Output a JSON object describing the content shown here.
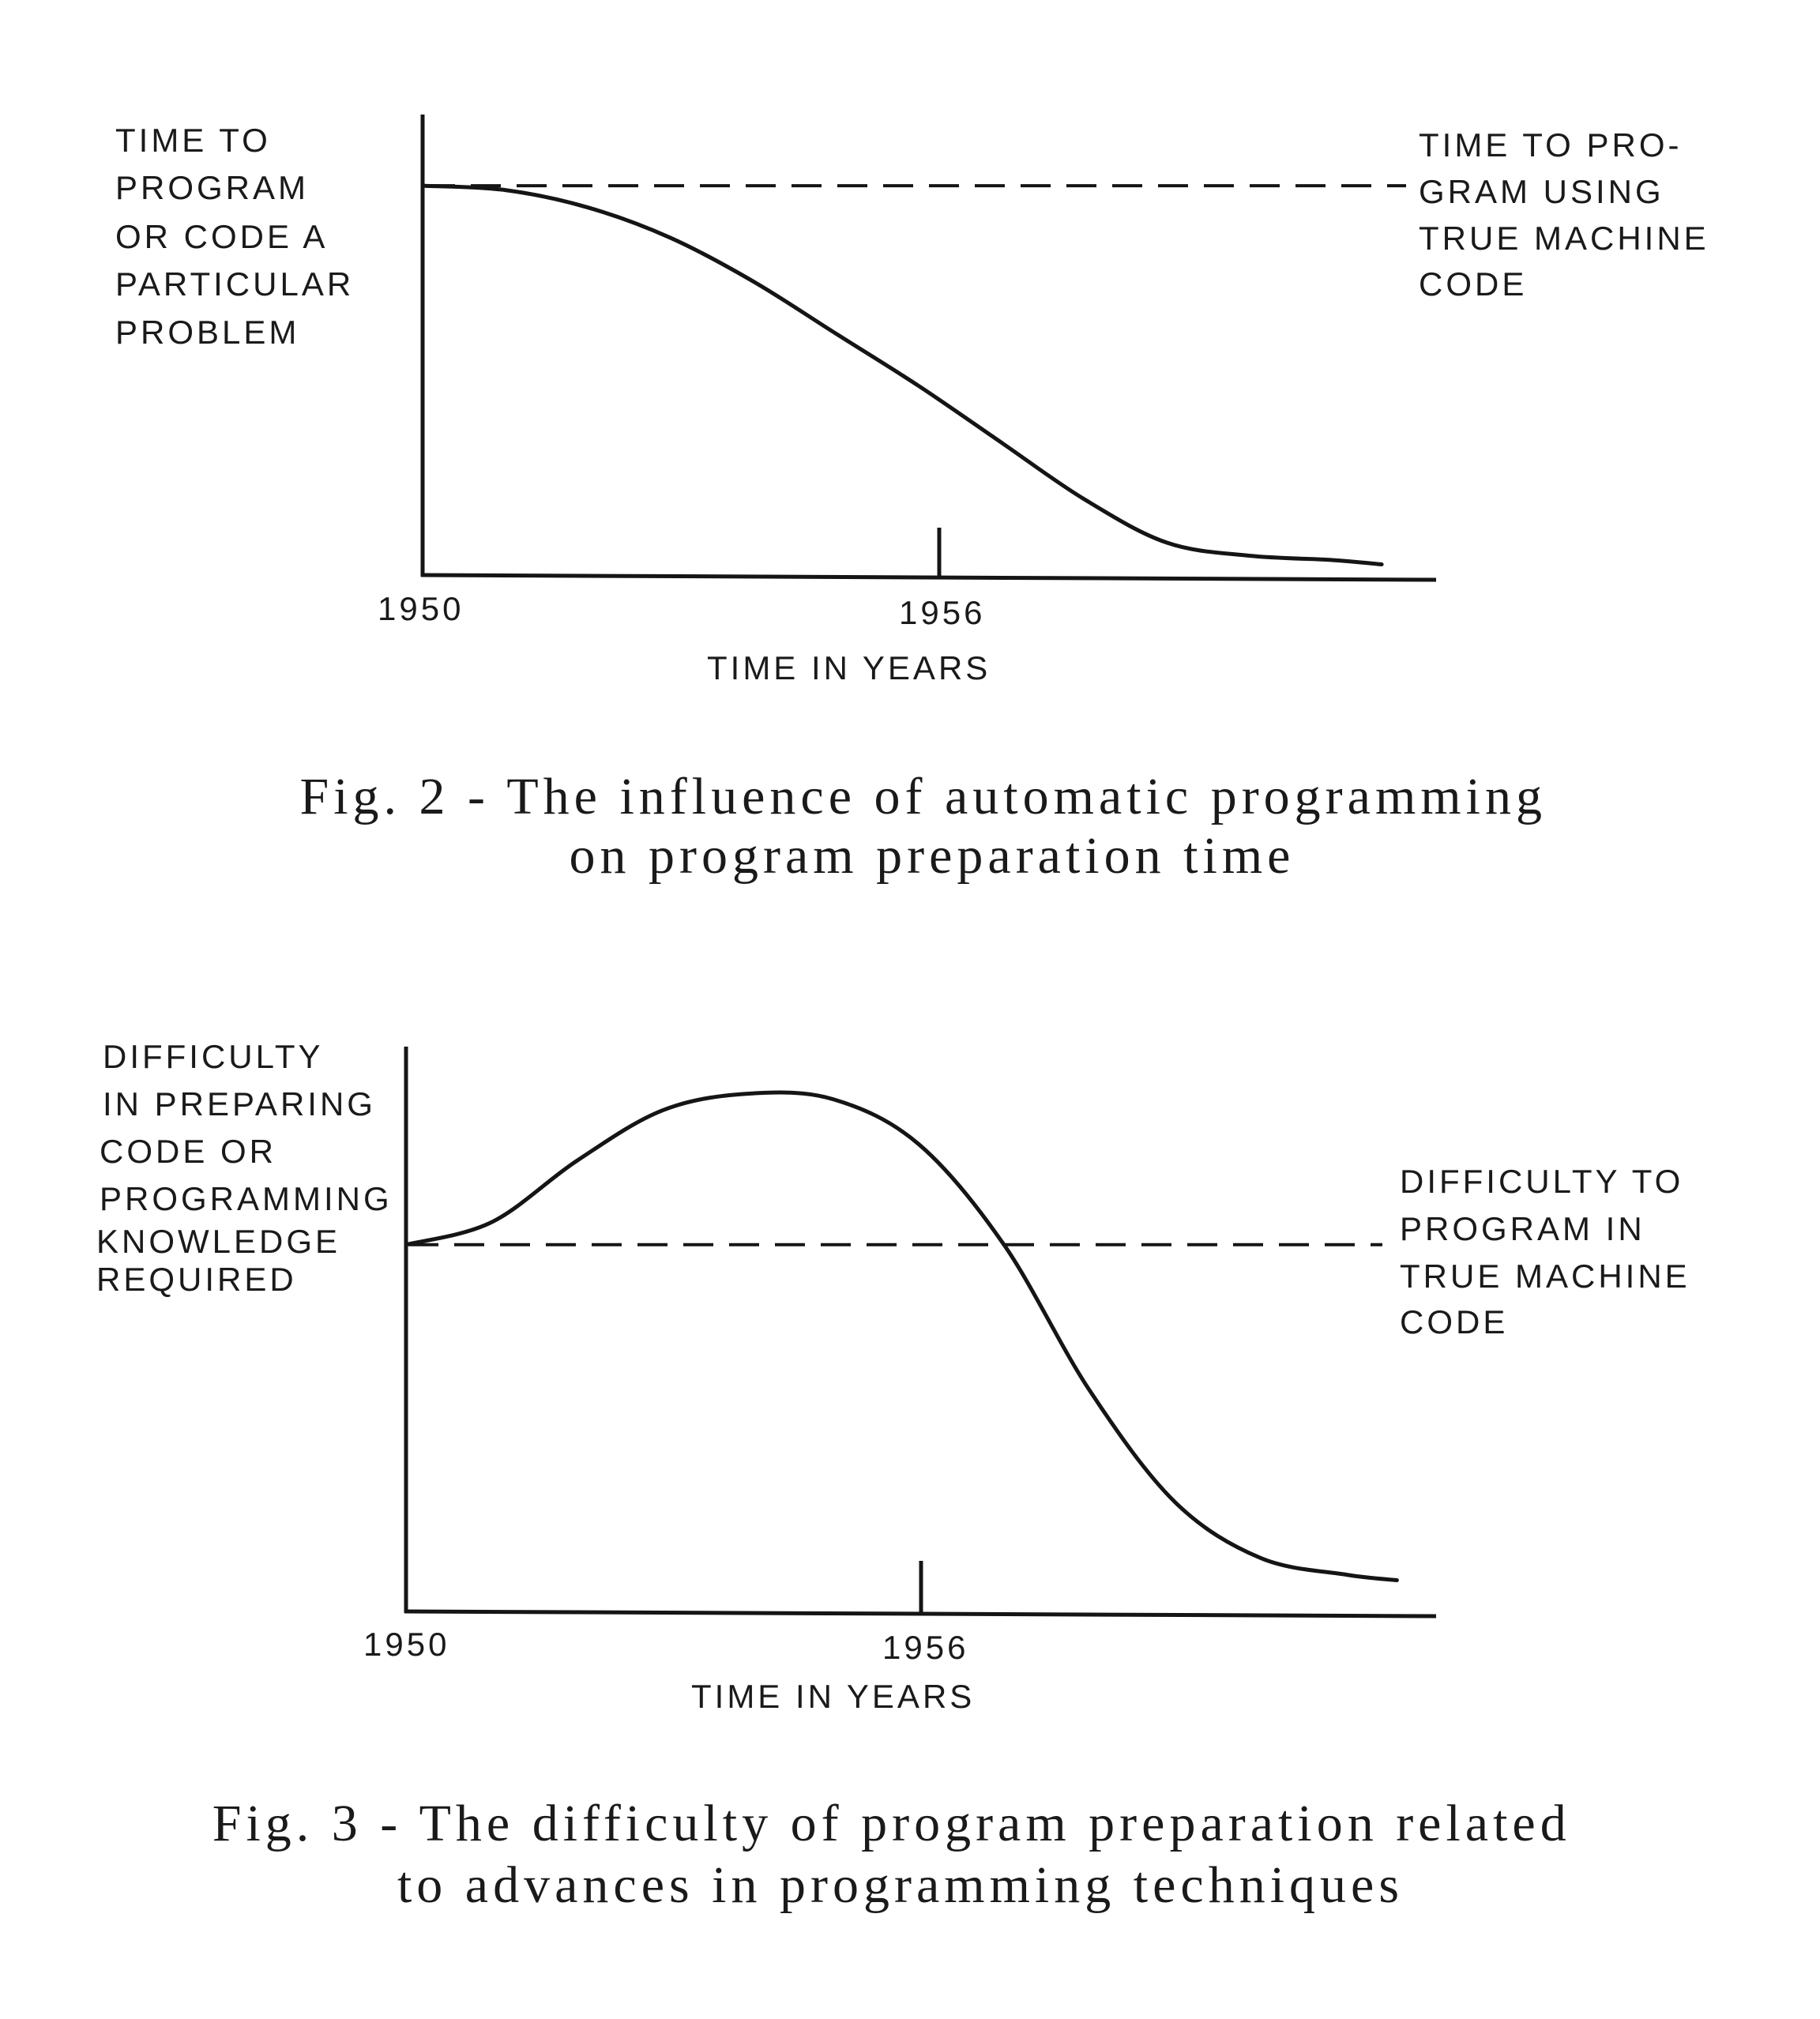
{
  "chart_data": [
    {
      "type": "line",
      "caption": [
        "Fig. 2 - The influence of automatic programming",
        "on program preparation time"
      ],
      "ylabel": [
        "TIME TO",
        "PROGRAM",
        "OR CODE A",
        "PARTICULAR",
        "PROBLEM"
      ],
      "xlabel": "TIME IN YEARS",
      "x_ticks": [
        "1950",
        "1956"
      ],
      "reference_label": [
        "TIME TO PRO-",
        "GRAM USING",
        "TRUE MACHINE",
        "CODE"
      ],
      "xlim": [
        1950,
        1961.8
      ],
      "ylim": [
        0,
        1
      ],
      "reference_value": 0.9,
      "series": [
        {
          "x": [
            1950,
            1951,
            1952,
            1953,
            1954,
            1955,
            1956,
            1957,
            1958,
            1959,
            1960,
            1961,
            1961.6
          ],
          "y": [
            0.9,
            0.89,
            0.85,
            0.78,
            0.68,
            0.56,
            0.44,
            0.31,
            0.18,
            0.08,
            0.05,
            0.04,
            0.03
          ]
        }
      ]
    },
    {
      "type": "line",
      "caption": [
        "Fig. 3 - The difficulty of program preparation related",
        "to advances in programming techniques"
      ],
      "ylabel": [
        "DIFFICULTY",
        "IN PREPARING",
        "CODE OR",
        "PROGRAMMING",
        "KNOWLEDGE",
        "REQUIRED"
      ],
      "xlabel": "TIME IN YEARS",
      "x_ticks": [
        "1950",
        "1956"
      ],
      "reference_label": [
        "DIFFICULTY TO",
        "PROGRAM IN",
        "TRUE MACHINE",
        "CODE"
      ],
      "xlim": [
        1950,
        1961.8
      ],
      "ylim": [
        0,
        1
      ],
      "reference_value": 0.66,
      "series": [
        {
          "x": [
            1950,
            1951,
            1952,
            1953,
            1954,
            1955,
            1956,
            1957,
            1958,
            1959,
            1960,
            1961,
            1961.6
          ],
          "y": [
            0.66,
            0.7,
            0.81,
            0.9,
            0.93,
            0.92,
            0.84,
            0.66,
            0.4,
            0.2,
            0.1,
            0.07,
            0.06
          ]
        }
      ]
    }
  ]
}
